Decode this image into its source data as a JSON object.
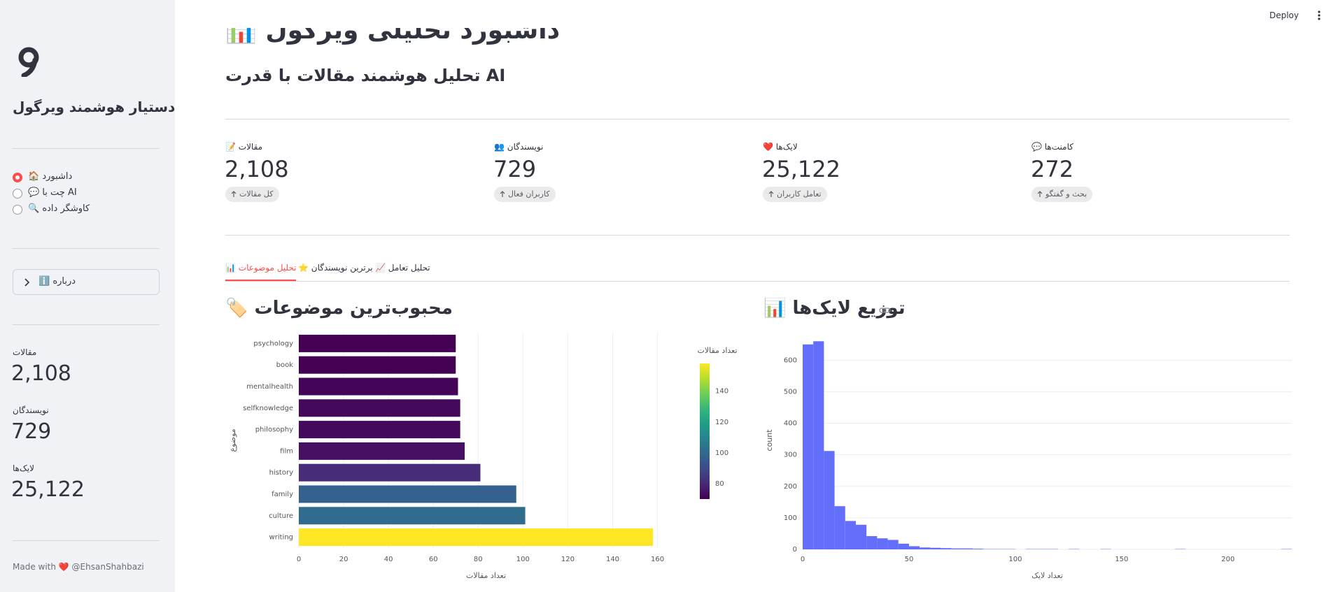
{
  "header": {
    "deploy": "Deploy"
  },
  "sidebar": {
    "title": "دستیار هوشمند ویرگول",
    "nav": [
      "🏠 داشبورد",
      "💬 چت با AI",
      "🔍 کاوشگر داده"
    ],
    "selected": 0,
    "about": "ℹ️ درباره",
    "stats": [
      {
        "label": "مقالات",
        "value": "2,108"
      },
      {
        "label": "نویسندگان",
        "value": "729"
      },
      {
        "label": "لایک‌ها",
        "value": "25,122"
      }
    ],
    "footer": "Made with ❤️ @EhsanShahbazi"
  },
  "main": {
    "title": "📊 داشبورد تحلیلی ویرگول",
    "subtitle": "تحلیل هوشمند مقالات با قدرت AI",
    "metrics": [
      {
        "label": "📝 مقالات",
        "value": "2,108",
        "delta": "کل مقالات"
      },
      {
        "label": "👥 نویسندگان",
        "value": "729",
        "delta": "کاربران فعال"
      },
      {
        "label": "❤️ لایک‌ها",
        "value": "25,122",
        "delta": "تعامل کاربران"
      },
      {
        "label": "💬 کامنت‌ها",
        "value": "272",
        "delta": "بحث و گفتگو"
      }
    ],
    "tabs": [
      "📊 تحلیل موضوعات",
      "⭐ برترین نویسندگان",
      "📈 تحلیل تعامل"
    ],
    "active_tab": 0
  },
  "chart_data": [
    {
      "type": "hbar",
      "title": "🏷️ محبوب‌ترین موضوعات",
      "categories": [
        "psychology",
        "book",
        "mentalhealth",
        "selfknowledge",
        "philosophy",
        "film",
        "history",
        "family",
        "culture",
        "writing"
      ],
      "values": [
        70,
        70,
        71,
        72,
        72,
        74,
        81,
        97,
        101,
        158
      ],
      "x_label": "تعداد مقالات",
      "y_label": "موضوع",
      "xlim": [
        0,
        167
      ],
      "xticks": [
        0,
        20,
        40,
        60,
        80,
        100,
        120,
        140,
        160
      ],
      "colorscale": [
        "#440154",
        "#482878",
        "#3e4989",
        "#31688e",
        "#26828e",
        "#1f9e89",
        "#35b779",
        "#6ece58",
        "#b5de2b",
        "#fde725"
      ],
      "colorbar": {
        "title": "تعداد مقالات",
        "lim": [
          70,
          158
        ],
        "ticks": [
          80,
          100,
          120,
          140
        ]
      }
    },
    {
      "type": "histogram",
      "title": "📊 توزیع لایک‌ها",
      "color": "#636efa",
      "bins": [
        0,
        5,
        10,
        15,
        20,
        25,
        30,
        35,
        40,
        45,
        50,
        55,
        60,
        65,
        70,
        75,
        80,
        85,
        90,
        95,
        100,
        105,
        110,
        115,
        120,
        125,
        130,
        135,
        140,
        145,
        150,
        155,
        160,
        165,
        170,
        175,
        180,
        185,
        190,
        195,
        200,
        205,
        210,
        215,
        220,
        225,
        230
      ],
      "values": [
        650,
        660,
        312,
        137,
        90,
        78,
        42,
        35,
        30,
        18,
        10,
        6,
        5,
        4,
        3,
        3,
        2,
        1,
        1,
        1,
        0,
        1,
        1,
        1,
        0,
        1,
        0,
        0,
        1,
        0,
        0,
        0,
        0,
        0,
        0,
        1,
        0,
        0,
        0,
        0,
        0,
        0,
        0,
        0,
        0,
        1
      ],
      "x_label": "تعداد لایک",
      "y_label": "count",
      "xlim": [
        0,
        230
      ],
      "xticks": [
        0,
        50,
        100,
        150,
        200
      ],
      "ylim": [
        0,
        665
      ],
      "yticks": [
        0,
        100,
        200,
        300,
        400,
        500,
        600
      ],
      "grid": true
    }
  ]
}
